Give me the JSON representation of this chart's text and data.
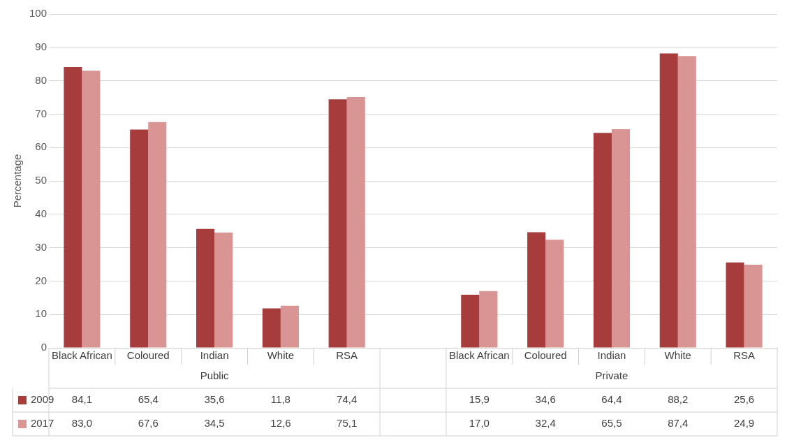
{
  "chart_data": {
    "type": "bar",
    "ylabel": "Percentage",
    "categories": [
      "Black African",
      "Coloured",
      "Indian",
      "White",
      "RSA",
      null,
      "Black African",
      "Coloured",
      "Indian",
      "White",
      "RSA"
    ],
    "series": [
      {
        "name": "2009",
        "color": "#a63d3c",
        "values": [
          84.1,
          65.4,
          35.6,
          11.8,
          74.4,
          null,
          15.9,
          34.6,
          64.4,
          88.2,
          25.6
        ],
        "value_labels": [
          "84,1",
          "65,4",
          "35,6",
          "11,8",
          "74,4",
          null,
          "15,9",
          "34,6",
          "64,4",
          "88,2",
          "25,6"
        ]
      },
      {
        "name": "2017",
        "color": "#d99594",
        "values": [
          83.0,
          67.6,
          34.5,
          12.6,
          75.1,
          null,
          17.0,
          32.4,
          65.5,
          87.4,
          24.9
        ],
        "value_labels": [
          "83,0",
          "67,6",
          "34,5",
          "12,6",
          "75,1",
          null,
          "17,0",
          "32,4",
          "65,5",
          "87,4",
          "24,9"
        ]
      }
    ],
    "annotations": [
      "Public",
      "Private"
    ],
    "ylim": [
      0,
      100
    ],
    "yticks": [
      0,
      10,
      20,
      30,
      40,
      50,
      60,
      70,
      80,
      90,
      100
    ],
    "grid": "y",
    "legend": "bottom"
  }
}
